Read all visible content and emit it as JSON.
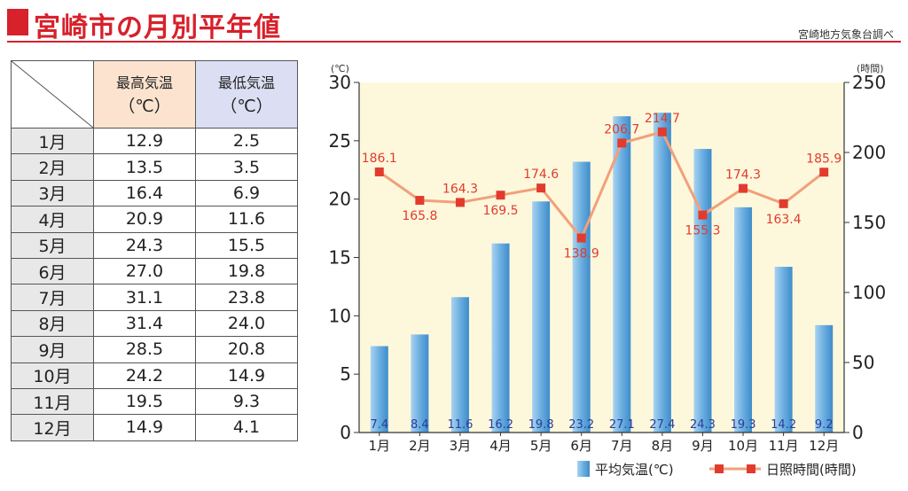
{
  "header": {
    "title": "宮崎市の月別平年値",
    "source": "宮崎地方気象台調べ"
  },
  "table": {
    "col_max_label": "最高気温",
    "col_min_label": "最低気温",
    "unit": "（℃）",
    "rows": [
      {
        "month": "1月",
        "max": "12.9",
        "min": "2.5"
      },
      {
        "month": "2月",
        "max": "13.5",
        "min": "3.5"
      },
      {
        "month": "3月",
        "max": "16.4",
        "min": "6.9"
      },
      {
        "month": "4月",
        "max": "20.9",
        "min": "11.6"
      },
      {
        "month": "5月",
        "max": "24.3",
        "min": "15.5"
      },
      {
        "month": "6月",
        "max": "27.0",
        "min": "19.8"
      },
      {
        "month": "7月",
        "max": "31.1",
        "min": "23.8"
      },
      {
        "month": "8月",
        "max": "31.4",
        "min": "24.0"
      },
      {
        "month": "9月",
        "max": "28.5",
        "min": "20.8"
      },
      {
        "month": "10月",
        "max": "24.2",
        "min": "14.9"
      },
      {
        "month": "11月",
        "max": "19.5",
        "min": "9.3"
      },
      {
        "month": "12月",
        "max": "14.9",
        "min": "4.1"
      }
    ]
  },
  "chart_data": {
    "type": "bar",
    "categories": [
      "1月",
      "2月",
      "3月",
      "4月",
      "5月",
      "6月",
      "7月",
      "8月",
      "9月",
      "10月",
      "11月",
      "12月"
    ],
    "series": [
      {
        "name": "平均気温(℃)",
        "type": "bar",
        "axis": "left",
        "values": [
          7.4,
          8.4,
          11.6,
          16.2,
          19.8,
          23.2,
          27.1,
          27.4,
          24.3,
          19.3,
          14.2,
          9.2
        ],
        "color": "#6aaee0"
      },
      {
        "name": "日照時間(時間)",
        "type": "line",
        "axis": "right",
        "values": [
          186.1,
          165.8,
          164.3,
          169.5,
          174.6,
          138.9,
          206.7,
          214.7,
          155.3,
          174.3,
          163.4,
          185.9
        ],
        "color": "#e23b2e",
        "line_color": "#f2a07a"
      }
    ],
    "y_left": {
      "unit": "(℃)",
      "ylim": [
        0,
        30
      ],
      "ticks": [
        0,
        5,
        10,
        15,
        20,
        25,
        30
      ]
    },
    "y_right": {
      "unit": "(時間)",
      "ylim": [
        0,
        250
      ],
      "ticks": [
        0,
        50,
        100,
        150,
        200,
        250
      ]
    },
    "legend_position": "bottom-right",
    "plot_background": "#fdf8dc",
    "grid": false
  }
}
